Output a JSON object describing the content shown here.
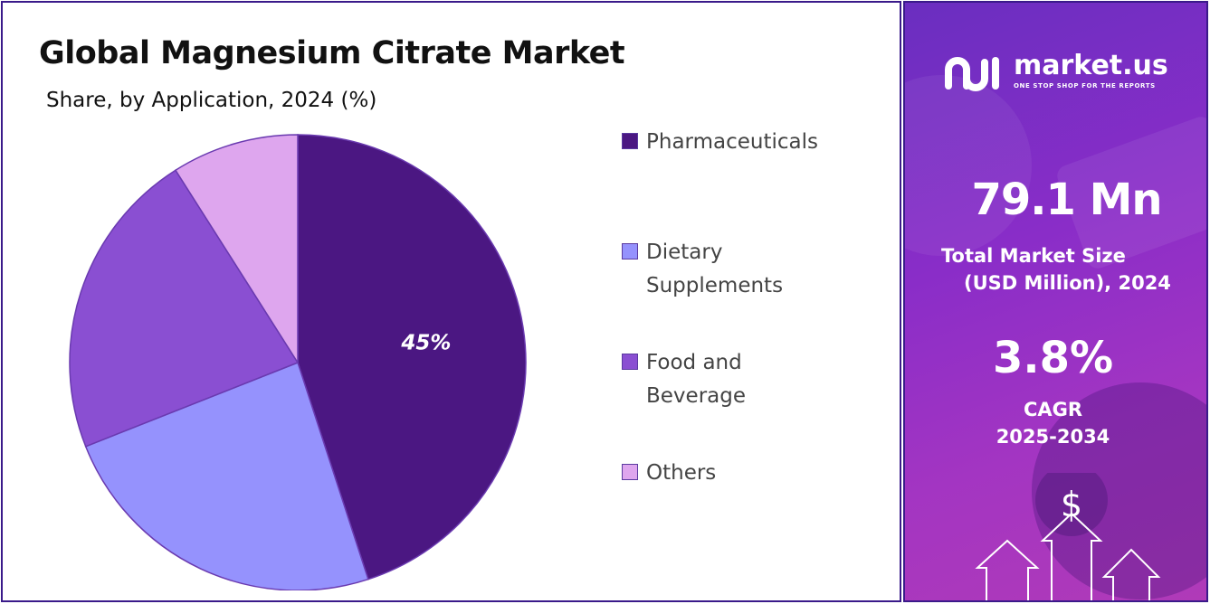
{
  "chart_data": {
    "type": "pie",
    "title": "Global Magnesium Citrate  Market",
    "subtitle": "Share, by Application, 2024 (%)",
    "categories": [
      "Pharmaceuticals",
      "Dietary Supplements",
      "Food and Beverage",
      "Others"
    ],
    "values": [
      45,
      24,
      22,
      9
    ],
    "data_labels": [
      "45%",
      "",
      "",
      ""
    ],
    "colors": [
      "#4b1782",
      "#9592fd",
      "#8a4fd2",
      "#dea6ee"
    ],
    "legend_placement": "right",
    "legend": [
      {
        "line1": "Pharmaceuticals",
        "line2": ""
      },
      {
        "line1": "Dietary",
        "line2": "Supplements"
      },
      {
        "line1": "Food and",
        "line2": "Beverage"
      },
      {
        "line1": "Others",
        "line2": ""
      }
    ]
  },
  "sidebar": {
    "logo_text": "market.us",
    "logo_tagline": "ONE STOP SHOP FOR THE REPORTS",
    "market_size_value": "79.1 Mn",
    "market_size_label_1": "Total Market Size",
    "market_size_label_2": "(USD Million), 2024",
    "cagr_value": "3.8%",
    "cagr_label_1": "CAGR",
    "cagr_label_2": "2025-2034",
    "dollar_symbol": "$",
    "icon": "growth-arrows-icon",
    "accent_color": "#8a2dc8"
  }
}
